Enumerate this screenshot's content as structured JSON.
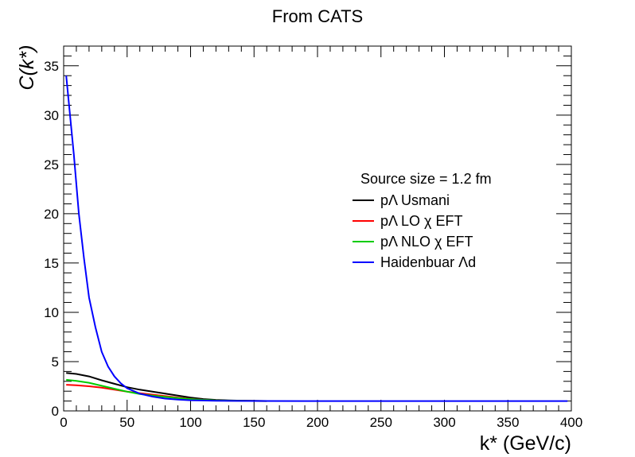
{
  "chart_data": {
    "type": "line",
    "title": "From CATS",
    "ylabel": "C(k*)",
    "xlabel": "k* (GeV/c)",
    "xlim": [
      0,
      400
    ],
    "ylim": [
      0,
      37
    ],
    "xticks": [
      0,
      50,
      100,
      150,
      200,
      250,
      300,
      350,
      400
    ],
    "yticks": [
      0,
      5,
      10,
      15,
      20,
      25,
      30,
      35
    ],
    "grid": false,
    "legend": {
      "header": "Source size = 1.2 fm",
      "placement": "center-right"
    },
    "series": [
      {
        "name": "pΛ Usmani",
        "color": "#000000",
        "x": [
          2,
          10,
          20,
          30,
          40,
          50,
          60,
          70,
          80,
          90,
          100,
          110,
          120,
          130,
          140,
          150,
          160
        ],
        "y": [
          3.85,
          3.75,
          3.5,
          3.1,
          2.75,
          2.4,
          2.15,
          1.95,
          1.75,
          1.55,
          1.35,
          1.2,
          1.12,
          1.07,
          1.04,
          1.02,
          1.01
        ]
      },
      {
        "name": "pΛ LO χ EFT",
        "color": "#ff0000",
        "x": [
          2,
          10,
          20,
          30,
          40,
          50,
          60,
          70,
          80,
          90,
          100,
          110,
          120,
          130,
          140,
          150,
          160
        ],
        "y": [
          2.65,
          2.6,
          2.5,
          2.35,
          2.15,
          1.95,
          1.8,
          1.65,
          1.5,
          1.35,
          1.22,
          1.12,
          1.07,
          1.04,
          1.02,
          1.01,
          1.0
        ]
      },
      {
        "name": "pΛ NLO χ EFT",
        "color": "#00cc00",
        "x": [
          2,
          10,
          20,
          30,
          40,
          50,
          60,
          70,
          80,
          90,
          100,
          110,
          120,
          130,
          140,
          150,
          160
        ],
        "y": [
          3.15,
          3.05,
          2.85,
          2.55,
          2.25,
          1.95,
          1.72,
          1.55,
          1.42,
          1.3,
          1.2,
          1.12,
          1.07,
          1.04,
          1.02,
          1.01,
          1.0
        ]
      },
      {
        "name": "Haidenbuar Λd",
        "color": "#0000ff",
        "x": [
          2,
          5,
          8,
          12,
          16,
          20,
          25,
          30,
          35,
          40,
          45,
          50,
          60,
          70,
          80,
          90,
          100,
          120,
          150,
          200,
          250,
          300,
          350,
          397
        ],
        "y": [
          34,
          30,
          26,
          20,
          15.5,
          11.5,
          8.5,
          6,
          4.5,
          3.5,
          2.8,
          2.3,
          1.75,
          1.45,
          1.25,
          1.15,
          1.08,
          1.03,
          1.01,
          1.0,
          1.0,
          1.0,
          1.0,
          1.0
        ]
      }
    ]
  }
}
